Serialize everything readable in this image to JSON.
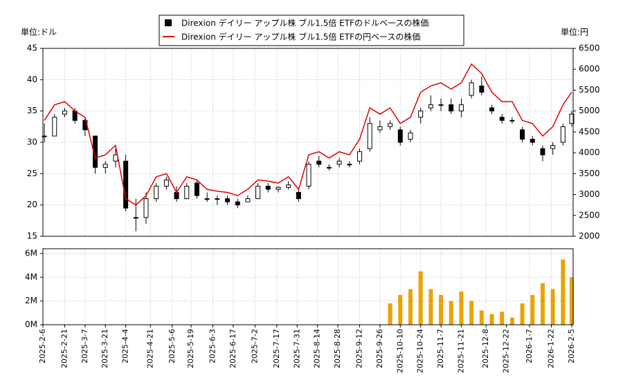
{
  "chart_data": [
    {
      "type": "candlestick",
      "ylabel": "単位:ドル",
      "y2label": "単位:円",
      "x": [
        "2025-2-7",
        "2025-2-14",
        "2025-2-21",
        "2025-2-28",
        "2025-3-7",
        "2025-3-14",
        "2025-3-21",
        "2025-3-28",
        "2025-4-4",
        "2025-4-11",
        "2025-4-18",
        "2025-4-25",
        "2025-5-2",
        "2025-5-9",
        "2025-5-16",
        "2025-5-23",
        "2025-5-30",
        "2025-6-6",
        "2025-6-13",
        "2025-6-20",
        "2025-6-27",
        "2025-7-4",
        "2025-7-11",
        "2025-7-18",
        "2025-7-25",
        "2025-8-1",
        "2025-8-8",
        "2025-8-15",
        "2025-8-22",
        "2025-8-29",
        "2025-9-5",
        "2025-9-12",
        "2025-9-19",
        "2025-9-26",
        "2025-10-3",
        "2025-10-10",
        "2025-10-17",
        "2025-10-24",
        "2025-10-31",
        "2025-11-7",
        "2025-11-14",
        "2025-11-21",
        "2025-11-28",
        "2025-12-5",
        "2025-12-12",
        "2025-12-19",
        "2025-12-26",
        "2026-1-2",
        "2026-1-9",
        "2026-1-16",
        "2026-1-23",
        "2026-1-30",
        "2026-2-5"
      ],
      "series": [
        {
          "name": "Direxion デイリー アップル株 ブル1.5倍 ETFのドルベースの株価",
          "color": "#000000",
          "open": [
            31,
            31,
            34.5,
            35,
            33.5,
            31,
            26,
            27,
            27,
            18,
            18,
            21,
            23,
            22,
            21,
            23.5,
            21,
            21,
            21,
            20.5,
            20.5,
            21,
            23,
            22.5,
            22.8,
            22,
            23,
            27,
            26,
            26.5,
            26.5,
            27,
            29,
            32,
            32.5,
            32,
            30.5,
            34,
            35.5,
            36,
            36,
            35,
            37.5,
            39,
            35.5,
            34,
            33.5,
            32,
            30.5,
            29,
            29,
            30,
            33
          ],
          "high": [
            33,
            34.5,
            35.5,
            35.5,
            34,
            31,
            27,
            29,
            28,
            21,
            22,
            23.5,
            24.5,
            23,
            23.5,
            24,
            22,
            21.5,
            21.5,
            21,
            21.5,
            23.5,
            23.5,
            23,
            23.8,
            22.5,
            27,
            27.8,
            26.5,
            27.5,
            27,
            29,
            34,
            33.5,
            33.5,
            32.5,
            32,
            35.5,
            37.5,
            37,
            37,
            37,
            40,
            40.5,
            36,
            34.5,
            34,
            32.5,
            31,
            29.5,
            30,
            33,
            35
          ],
          "low": [
            30,
            31,
            34,
            33,
            31,
            25,
            25,
            26,
            19,
            15.8,
            17,
            20.5,
            22.5,
            20.5,
            21,
            21,
            20.5,
            20,
            20,
            19.5,
            20.5,
            21,
            22,
            22,
            22.5,
            20.5,
            22.5,
            26,
            25.5,
            26,
            26,
            26.5,
            28.5,
            31.5,
            32,
            29.5,
            30,
            33,
            35,
            35,
            34.5,
            34,
            37,
            37.5,
            34.5,
            33,
            33,
            30,
            29.5,
            27,
            28,
            29.5,
            32.5
          ],
          "close": [
            31,
            34,
            35,
            33.5,
            32,
            26,
            26.5,
            28,
            19.5,
            18,
            21,
            23,
            24,
            21,
            23,
            21.5,
            21,
            21,
            20.5,
            20,
            21,
            23,
            22.5,
            22.8,
            23.2,
            21,
            26.5,
            26.5,
            26,
            27,
            26.5,
            28.5,
            33,
            32.5,
            33,
            30,
            31.5,
            35,
            36,
            36,
            35,
            36,
            39.5,
            38,
            35,
            33.5,
            33.5,
            30.5,
            30,
            28,
            29.5,
            32.5,
            34.5
          ]
        },
        {
          "name": "Direxion デイリー アップル株 ブル1.5倍 ETFの円ベースの株価",
          "color": "#e00000",
          "type": "line",
          "axis": "y2",
          "values": [
            4775,
            5150,
            5225,
            5000,
            4850,
            3875,
            3950,
            4175,
            2900,
            2750,
            2975,
            3425,
            3500,
            3050,
            3425,
            3350,
            3125,
            3080,
            3050,
            2975,
            3125,
            3350,
            3320,
            3275,
            3425,
            3125,
            3950,
            4025,
            3875,
            4025,
            3950,
            4325,
            5075,
            4925,
            5075,
            4700,
            4850,
            5450,
            5600,
            5675,
            5525,
            5675,
            6125,
            5900,
            5450,
            5225,
            5225,
            4775,
            4700,
            4400,
            4625,
            5150,
            5450
          ]
        }
      ],
      "ylim": [
        15,
        45
      ],
      "yticks": [
        15,
        20,
        25,
        30,
        35,
        40,
        45
      ],
      "y2lim": [
        2000,
        6500
      ],
      "y2ticks": [
        2000,
        2500,
        3000,
        3500,
        4000,
        4500,
        5000,
        5500,
        6000,
        6500
      ],
      "grid": true
    },
    {
      "type": "bar",
      "color": "#e8a400",
      "x": [
        "2025-10-3",
        "2025-10-10",
        "2025-10-17",
        "2025-10-24",
        "2025-10-31",
        "2025-11-7",
        "2025-11-14",
        "2025-11-21",
        "2025-11-28",
        "2025-12-5",
        "2025-12-12",
        "2025-12-19",
        "2025-12-26",
        "2026-1-2",
        "2026-1-9",
        "2026-1-16",
        "2026-1-23",
        "2026-1-30",
        "2026-2-5"
      ],
      "values": [
        1800000,
        2500000,
        3000000,
        4500000,
        3000000,
        2500000,
        2000000,
        2800000,
        2000000,
        1200000,
        900000,
        1100000,
        600000,
        1800000,
        2500000,
        3500000,
        3000000,
        5500000,
        4000000
      ],
      "ylim": [
        0,
        6400000
      ],
      "yticks": [
        {
          "value": 0,
          "label": "0M"
        },
        {
          "value": 2000000,
          "label": "2M"
        },
        {
          "value": 4000000,
          "label": "4M"
        },
        {
          "value": 6000000,
          "label": "6M"
        }
      ],
      "xlim": [
        "2025-2-6",
        "2026-2-6"
      ],
      "xticks": [
        "2025-2-6",
        "2025-2-21",
        "2025-3-7",
        "2025-3-21",
        "2025-4-4",
        "2025-4-21",
        "2025-5-6",
        "2025-5-19",
        "2025-6-3",
        "2025-6-17",
        "2025-7-2",
        "2025-7-17",
        "2025-7-31",
        "2025-8-14",
        "2025-8-28",
        "2025-9-12",
        "2025-9-26",
        "2025-10-10",
        "2025-10-24",
        "2025-11-7",
        "2025-11-21",
        "2025-12-8",
        "2025-12-22",
        "2026-1-7",
        "2026-1-22",
        "2026-2-5"
      ],
      "grid": true
    }
  ]
}
